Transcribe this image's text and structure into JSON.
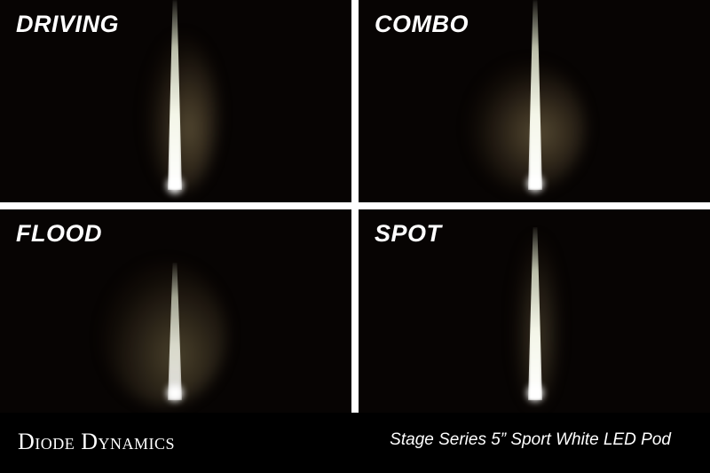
{
  "panels": [
    {
      "label": "DRIVING"
    },
    {
      "label": "COMBO"
    },
    {
      "label": "FLOOD"
    },
    {
      "label": "SPOT"
    }
  ],
  "footer": {
    "brand": "Diode Dynamics",
    "product": "Stage Series 5” Sport White LED Pod"
  },
  "colors": {
    "background": "#070403",
    "gutter": "#ffffff",
    "text": "#ffffff"
  }
}
